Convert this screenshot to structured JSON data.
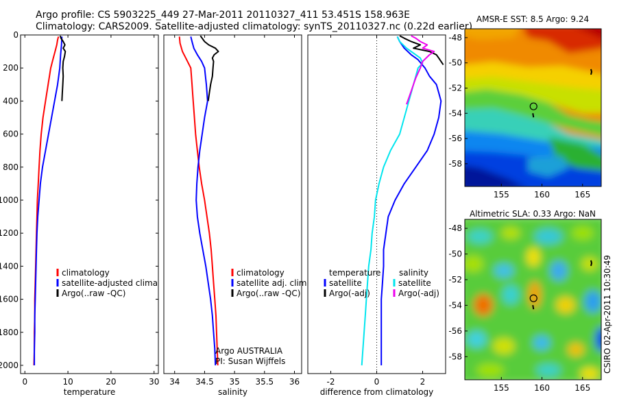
{
  "header": {
    "line1": "Argo profile: CS 5903225_449 27-Mar-2011 20110327_411 53.451S 158.963E",
    "line2": "Climatology: CARS2009. Satellite-adjusted climatology: synTS_20110327.nc (0.22d earlier)"
  },
  "side_text": "CSIRO 02-Apr-2011 10:30:49",
  "colors": {
    "climatology": "#ff0000",
    "satellite": "#0000ff",
    "argo": "#000000",
    "satellite_salinity": "#00e5ee",
    "argo_salinity": "#ee00ee"
  },
  "chart_data": [
    {
      "type": "line",
      "id": "temperature",
      "xlabel": "temperature",
      "xlim": [
        -1,
        31
      ],
      "ylim": [
        2050,
        0
      ],
      "xticks": [
        0,
        10,
        20,
        30
      ],
      "yticks": [
        0,
        200,
        400,
        600,
        800,
        1000,
        1200,
        1400,
        1600,
        1800,
        2000
      ],
      "legend": [
        "climatology",
        "satellite-adjusted climatology",
        "Argo(..raw -QC)"
      ],
      "series": [
        {
          "name": "climatology",
          "color": "#ff0000",
          "points": [
            [
              7.8,
              10
            ],
            [
              7.6,
              30
            ],
            [
              7.4,
              60
            ],
            [
              7.0,
              100
            ],
            [
              6.5,
              150
            ],
            [
              6.0,
              200
            ],
            [
              5.4,
              300
            ],
            [
              4.8,
              400
            ],
            [
              4.2,
              500
            ],
            [
              3.8,
              600
            ],
            [
              3.5,
              700
            ],
            [
              3.3,
              800
            ],
            [
              3.1,
              900
            ],
            [
              2.9,
              1000
            ],
            [
              2.8,
              1100
            ],
            [
              2.7,
              1200
            ],
            [
              2.6,
              1300
            ],
            [
              2.5,
              1400
            ],
            [
              2.4,
              1500
            ],
            [
              2.3,
              1600
            ],
            [
              2.3,
              1700
            ],
            [
              2.2,
              1800
            ],
            [
              2.2,
              1900
            ],
            [
              2.1,
              2000
            ]
          ]
        },
        {
          "name": "satellite-adjusted climatology",
          "color": "#0000ff",
          "points": [
            [
              8.6,
              10
            ],
            [
              8.5,
              60
            ],
            [
              8.3,
              120
            ],
            [
              8.1,
              200
            ],
            [
              7.6,
              300
            ],
            [
              6.9,
              400
            ],
            [
              6.2,
              500
            ],
            [
              5.5,
              600
            ],
            [
              4.8,
              700
            ],
            [
              4.1,
              800
            ],
            [
              3.6,
              900
            ],
            [
              3.3,
              1000
            ],
            [
              3.0,
              1100
            ],
            [
              2.8,
              1200
            ],
            [
              2.7,
              1300
            ],
            [
              2.6,
              1400
            ],
            [
              2.5,
              1500
            ],
            [
              2.4,
              1600
            ],
            [
              2.3,
              1700
            ],
            [
              2.3,
              1800
            ],
            [
              2.2,
              1900
            ],
            [
              2.2,
              2000
            ]
          ]
        },
        {
          "name": "Argo(..raw -QC)",
          "color": "#000000",
          "points": [
            [
              8.2,
              5
            ],
            [
              8.4,
              20
            ],
            [
              8.9,
              40
            ],
            [
              9.3,
              60
            ],
            [
              8.9,
              80
            ],
            [
              9.4,
              100
            ],
            [
              9.2,
              130
            ],
            [
              8.9,
              160
            ],
            [
              8.8,
              200
            ],
            [
              8.9,
              250
            ],
            [
              8.8,
              300
            ],
            [
              8.7,
              350
            ],
            [
              8.6,
              400
            ]
          ]
        }
      ]
    },
    {
      "type": "line",
      "id": "salinity",
      "xlabel": "salinity",
      "xlim": [
        33.82,
        36.12
      ],
      "ylim": [
        2050,
        0
      ],
      "xticks": [
        34,
        34.5,
        35,
        35.5,
        36
      ],
      "xticklabels": [
        "34",
        "34.5",
        "35",
        "35.5",
        "36"
      ],
      "legend": [
        "climatology",
        "satellite adj. clim.",
        "Argo(..raw -QC)"
      ],
      "annotation": [
        "Argo AUSTRALIA",
        "PI: Susan Wijffels"
      ],
      "series": [
        {
          "name": "climatology",
          "color": "#ff0000",
          "points": [
            [
              34.08,
              10
            ],
            [
              34.09,
              50
            ],
            [
              34.13,
              100
            ],
            [
              34.2,
              150
            ],
            [
              34.27,
              200
            ],
            [
              34.29,
              300
            ],
            [
              34.31,
              400
            ],
            [
              34.33,
              500
            ],
            [
              34.35,
              600
            ],
            [
              34.38,
              700
            ],
            [
              34.41,
              800
            ],
            [
              34.45,
              900
            ],
            [
              34.5,
              1000
            ],
            [
              34.54,
              1100
            ],
            [
              34.58,
              1200
            ],
            [
              34.61,
              1300
            ],
            [
              34.63,
              1400
            ],
            [
              34.65,
              1500
            ],
            [
              34.67,
              1600
            ],
            [
              34.69,
              1700
            ],
            [
              34.7,
              1800
            ],
            [
              34.71,
              1900
            ],
            [
              34.72,
              2000
            ]
          ]
        },
        {
          "name": "satellite adj. clim.",
          "color": "#0000ff",
          "points": [
            [
              34.27,
              10
            ],
            [
              34.29,
              40
            ],
            [
              34.32,
              80
            ],
            [
              34.38,
              120
            ],
            [
              34.45,
              160
            ],
            [
              34.5,
              200
            ],
            [
              34.53,
              300
            ],
            [
              34.55,
              400
            ],
            [
              34.5,
              500
            ],
            [
              34.46,
              600
            ],
            [
              34.42,
              700
            ],
            [
              34.39,
              800
            ],
            [
              34.37,
              900
            ],
            [
              34.36,
              1000
            ],
            [
              34.38,
              1100
            ],
            [
              34.42,
              1200
            ],
            [
              34.47,
              1300
            ],
            [
              34.52,
              1400
            ],
            [
              34.56,
              1500
            ],
            [
              34.6,
              1600
            ],
            [
              34.63,
              1700
            ],
            [
              34.65,
              1800
            ],
            [
              34.67,
              1900
            ],
            [
              34.68,
              2000
            ]
          ]
        },
        {
          "name": "Argo(..raw -QC)",
          "color": "#000000",
          "points": [
            [
              34.43,
              5
            ],
            [
              34.46,
              20
            ],
            [
              34.5,
              40
            ],
            [
              34.57,
              60
            ],
            [
              34.68,
              80
            ],
            [
              34.73,
              100
            ],
            [
              34.66,
              120
            ],
            [
              34.63,
              140
            ],
            [
              34.65,
              160
            ],
            [
              34.64,
              200
            ],
            [
              34.63,
              250
            ],
            [
              34.6,
              300
            ],
            [
              34.58,
              350
            ],
            [
              34.56,
              400
            ]
          ]
        }
      ]
    },
    {
      "type": "line",
      "id": "difference",
      "xlabel": "difference from climatology",
      "xlim": [
        -3,
        3
      ],
      "ylim": [
        2050,
        0
      ],
      "xticks": [
        -2,
        0,
        2
      ],
      "legend_groups": [
        {
          "title": "temperature",
          "items": [
            "satellite",
            "Argo(-adj)"
          ]
        },
        {
          "title": "salinity",
          "items": [
            "satellite",
            "Argo(-adj)"
          ]
        }
      ],
      "series": [
        {
          "name": "temperature satellite",
          "color": "#0000ff",
          "points": [
            [
              0.9,
              10
            ],
            [
              1.0,
              40
            ],
            [
              1.2,
              80
            ],
            [
              1.5,
              120
            ],
            [
              1.8,
              150
            ],
            [
              2.1,
              200
            ],
            [
              2.3,
              250
            ],
            [
              2.6,
              300
            ],
            [
              2.7,
              350
            ],
            [
              2.8,
              400
            ],
            [
              2.7,
              500
            ],
            [
              2.5,
              600
            ],
            [
              2.2,
              700
            ],
            [
              1.7,
              800
            ],
            [
              1.2,
              900
            ],
            [
              0.8,
              1000
            ],
            [
              0.5,
              1100
            ],
            [
              0.4,
              1200
            ],
            [
              0.3,
              1300
            ],
            [
              0.3,
              1400
            ],
            [
              0.25,
              1500
            ],
            [
              0.2,
              1600
            ],
            [
              0.2,
              1700
            ],
            [
              0.2,
              1800
            ],
            [
              0.2,
              1900
            ],
            [
              0.2,
              2000
            ]
          ]
        },
        {
          "name": "temperature Argo(-adj)",
          "color": "#000000",
          "points": [
            [
              1.0,
              5
            ],
            [
              1.2,
              20
            ],
            [
              1.5,
              40
            ],
            [
              1.9,
              60
            ],
            [
              1.6,
              80
            ],
            [
              2.3,
              100
            ],
            [
              2.6,
              120
            ],
            [
              2.7,
              140
            ],
            [
              2.8,
              160
            ],
            [
              2.9,
              180
            ]
          ]
        },
        {
          "name": "salinity satellite",
          "color": "#00e5ee",
          "points": [
            [
              0.9,
              10
            ],
            [
              1.0,
              40
            ],
            [
              1.3,
              80
            ],
            [
              1.6,
              110
            ],
            [
              1.9,
              140
            ],
            [
              2.0,
              170
            ],
            [
              1.8,
              200
            ],
            [
              1.7,
              250
            ],
            [
              1.6,
              300
            ],
            [
              1.5,
              350
            ],
            [
              1.4,
              400
            ],
            [
              1.2,
              500
            ],
            [
              1.0,
              600
            ],
            [
              0.6,
              700
            ],
            [
              0.3,
              800
            ],
            [
              0.1,
              900
            ],
            [
              -0.05,
              1000
            ],
            [
              -0.1,
              1100
            ],
            [
              -0.2,
              1200
            ],
            [
              -0.25,
              1300
            ],
            [
              -0.35,
              1400
            ],
            [
              -0.4,
              1500
            ],
            [
              -0.45,
              1600
            ],
            [
              -0.5,
              1700
            ],
            [
              -0.55,
              1800
            ],
            [
              -0.6,
              1900
            ],
            [
              -0.65,
              2000
            ]
          ]
        },
        {
          "name": "salinity Argo(-adj)",
          "color": "#ee00ee",
          "points": [
            [
              1.5,
              5
            ],
            [
              1.7,
              20
            ],
            [
              1.9,
              40
            ],
            [
              2.2,
              60
            ],
            [
              2.0,
              80
            ],
            [
              2.5,
              100
            ],
            [
              2.3,
              120
            ],
            [
              2.0,
              160
            ],
            [
              1.9,
              200
            ],
            [
              1.7,
              260
            ],
            [
              1.6,
              300
            ],
            [
              1.5,
              340
            ],
            [
              1.4,
              380
            ],
            [
              1.3,
              420
            ]
          ]
        }
      ]
    },
    {
      "type": "heatmap",
      "id": "sst-map",
      "title": "AMSR-E SST: 8.5 Argo: 9.24",
      "xlim": [
        150.5,
        167.3
      ],
      "ylim": [
        -59.8,
        -47.3
      ],
      "xticks": [
        155,
        160,
        165
      ],
      "yticks": [
        -48,
        -50,
        -52,
        -54,
        -56,
        -58
      ],
      "argo_position": [
        158.963,
        -53.451
      ]
    },
    {
      "type": "heatmap",
      "id": "sla-map",
      "title": "Altimetric SLA: 0.33 Argo: NaN",
      "xlim": [
        150.5,
        167.3
      ],
      "ylim": [
        -59.8,
        -47.3
      ],
      "xticks": [
        155,
        160,
        165
      ],
      "yticks": [
        -48,
        -50,
        -52,
        -54,
        -56,
        -58
      ],
      "argo_position": [
        158.963,
        -53.451
      ]
    }
  ]
}
